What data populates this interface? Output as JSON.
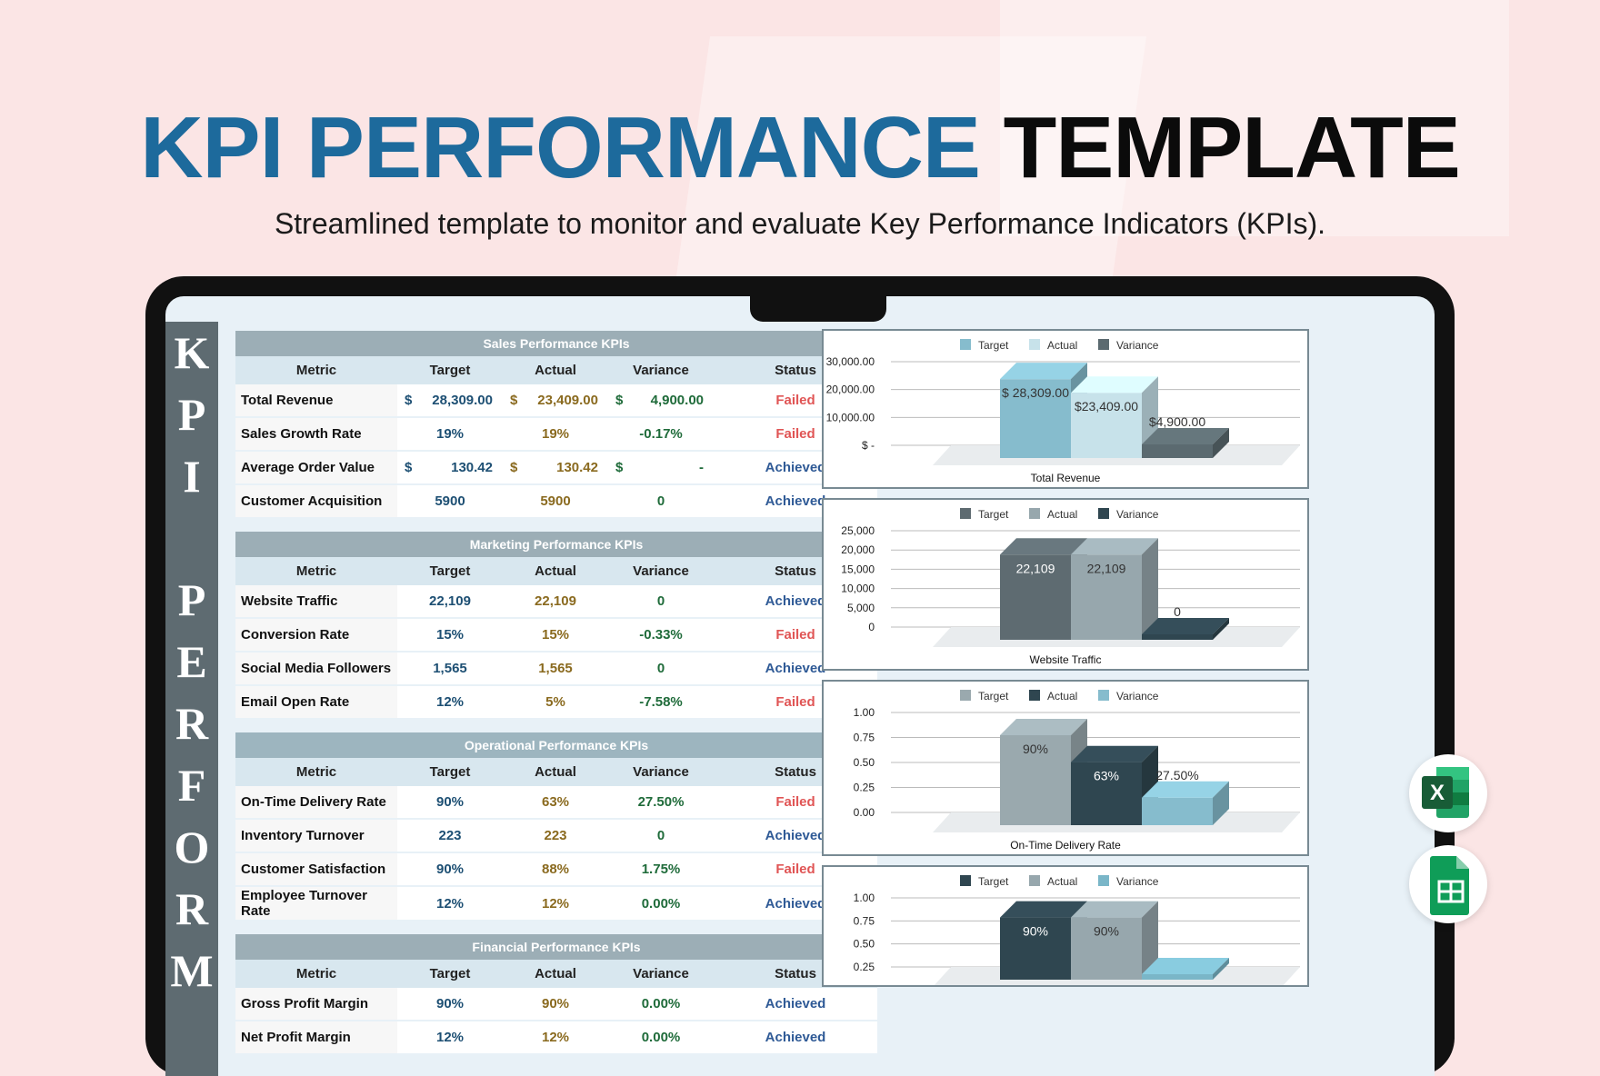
{
  "hero": {
    "title_blue": "KPI PERFORMANCE",
    "title_black": "TEMPLATE",
    "subtitle": "Streamlined template to monitor and evaluate Key Performance Indicators (KPIs)."
  },
  "sidebar": {
    "letters": [
      "K",
      "P",
      "I",
      "",
      "P",
      "E",
      "R",
      "F",
      "O",
      "R",
      "M"
    ]
  },
  "columns": [
    "Metric",
    "Target",
    "Actual",
    "Variance",
    "Status"
  ],
  "colors": {
    "brand_blue": "#1d6a9c",
    "failed": "#e05555",
    "achieved": "#2f5a96"
  },
  "tables": [
    {
      "title": "Sales Performance KPIs",
      "rows": [
        {
          "metric": "Total Revenue",
          "target": "28,309.00",
          "actual": "23,409.00",
          "variance": "4,900.00",
          "status": "Failed",
          "currency": true
        },
        {
          "metric": "Sales Growth Rate",
          "target": "19%",
          "actual": "19%",
          "variance": "-0.17%",
          "status": "Failed"
        },
        {
          "metric": "Average Order Value",
          "target": "130.42",
          "actual": "130.42",
          "variance": "-",
          "status": "Achieved",
          "currency": true
        },
        {
          "metric": "Customer Acquisition",
          "target": "5900",
          "actual": "5900",
          "variance": "0",
          "status": "Achieved"
        }
      ]
    },
    {
      "title": "Marketing Performance KPIs",
      "rows": [
        {
          "metric": "Website Traffic",
          "target": "22,109",
          "actual": "22,109",
          "variance": "0",
          "status": "Achieved"
        },
        {
          "metric": "Conversion Rate",
          "target": "15%",
          "actual": "15%",
          "variance": "-0.33%",
          "status": "Failed"
        },
        {
          "metric": "Social Media Followers",
          "target": "1,565",
          "actual": "1,565",
          "variance": "0",
          "status": "Achieved"
        },
        {
          "metric": "Email Open Rate",
          "target": "12%",
          "actual": "5%",
          "variance": "-7.58%",
          "status": "Failed"
        }
      ]
    },
    {
      "title": "Operational Performance KPIs",
      "rows": [
        {
          "metric": "On-Time Delivery Rate",
          "target": "90%",
          "actual": "63%",
          "variance": "27.50%",
          "status": "Failed"
        },
        {
          "metric": "Inventory Turnover",
          "target": "223",
          "actual": "223",
          "variance": "0",
          "status": "Achieved"
        },
        {
          "metric": "Customer Satisfaction",
          "target": "90%",
          "actual": "88%",
          "variance": "1.75%",
          "status": "Failed"
        },
        {
          "metric": "Employee Turnover Rate",
          "target": "12%",
          "actual": "12%",
          "variance": "0.00%",
          "status": "Achieved"
        }
      ]
    },
    {
      "title": "Financial Performance KPIs",
      "rows": [
        {
          "metric": "Gross Profit Margin",
          "target": "90%",
          "actual": "90%",
          "variance": "0.00%",
          "status": "Achieved"
        },
        {
          "metric": "Net Profit Margin",
          "target": "12%",
          "actual": "12%",
          "variance": "0.00%",
          "status": "Achieved"
        }
      ]
    }
  ],
  "chart_data": [
    {
      "type": "bar",
      "title": "Total Revenue",
      "series": [
        {
          "name": "Target",
          "value": 28309,
          "label": "$ 28,309.00",
          "color": "#86bccd"
        },
        {
          "name": "Actual",
          "value": 23409,
          "label": "$23,409.00",
          "color": "#c7e2ea"
        },
        {
          "name": "Variance",
          "value": 4900,
          "label": "$4,900.00",
          "color": "#5b6a70"
        }
      ],
      "yticks": [
        "$ 30,000.00",
        "$ 20,000.00",
        "$ 10,000.00",
        "$ -"
      ],
      "ymax": 30000
    },
    {
      "type": "bar",
      "title": "Website Traffic",
      "series": [
        {
          "name": "Target",
          "value": 22109,
          "label": "22,109",
          "color": "#5e6b71"
        },
        {
          "name": "Actual",
          "value": 22109,
          "label": "22,109",
          "color": "#97a7ad"
        },
        {
          "name": "Variance",
          "value": 0,
          "label": "0",
          "color": "#2f4650"
        }
      ],
      "yticks": [
        "25,000",
        "20,000",
        "15,000",
        "10,000",
        "5,000",
        "0"
      ],
      "ymax": 25000
    },
    {
      "type": "bar",
      "title": "On-Time Delivery Rate",
      "series": [
        {
          "name": "Target",
          "value": 0.9,
          "label": "90%",
          "color": "#9aa9ae"
        },
        {
          "name": "Actual",
          "value": 0.63,
          "label": "63%",
          "color": "#2f4650"
        },
        {
          "name": "Variance",
          "value": 0.275,
          "label": "27.50%",
          "color": "#86bccd"
        }
      ],
      "yticks": [
        "1.00",
        "0.75",
        "0.50",
        "0.25",
        "0.00"
      ],
      "ymax": 1
    },
    {
      "type": "bar",
      "title": "",
      "series": [
        {
          "name": "Target",
          "value": 0.9,
          "label": "90%",
          "color": "#2f4650"
        },
        {
          "name": "Actual",
          "value": 0.9,
          "label": "90%",
          "color": "#97a7ad"
        },
        {
          "name": "Variance",
          "value": 0,
          "label": "",
          "color": "#7ab6c8"
        }
      ],
      "yticks": [
        "1.00",
        "0.75",
        "0.50",
        "0.25"
      ],
      "ymax": 1
    }
  ]
}
